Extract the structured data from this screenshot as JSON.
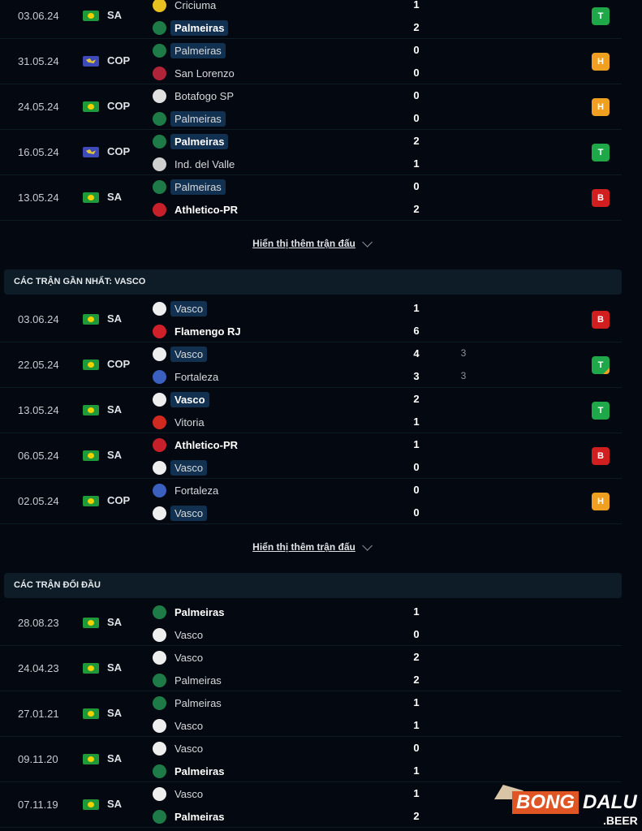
{
  "colors": {
    "win": "#1fa84a",
    "draw": "#f0a020",
    "loss": "#d11f1f",
    "header_bg": "#0d1c26",
    "highlight": "#12304f"
  },
  "show_more_label": "Hiển thị thêm trận đấu",
  "sections": [
    {
      "title": "",
      "matches": [
        {
          "date": "03.06.24",
          "flag": "brazil-flag",
          "comp": "SA",
          "home": {
            "name": "Criciuma",
            "icon": "criciuma-crest",
            "color": "#e8c020",
            "bold": false,
            "hl": false
          },
          "away": {
            "name": "Palmeiras",
            "icon": "palmeiras-crest",
            "color": "#1e7a46",
            "bold": true,
            "hl": true
          },
          "score": [
            "1",
            "2"
          ],
          "pen": [
            "",
            ""
          ],
          "result": "T"
        },
        {
          "date": "31.05.24",
          "flag": "conmebol-flag",
          "comp": "COP",
          "home": {
            "name": "Palmeiras",
            "icon": "palmeiras-crest",
            "color": "#1e7a46",
            "bold": false,
            "hl": true
          },
          "away": {
            "name": "San Lorenzo",
            "icon": "san-lorenzo-crest",
            "color": "#b0243a",
            "bold": false,
            "hl": false
          },
          "score": [
            "0",
            "0"
          ],
          "pen": [
            "",
            ""
          ],
          "result": "H"
        },
        {
          "date": "24.05.24",
          "flag": "brazil-flag",
          "comp": "COP",
          "home": {
            "name": "Botafogo SP",
            "icon": "botafogo-sp-crest",
            "color": "#e0e0e0",
            "bold": false,
            "hl": false
          },
          "away": {
            "name": "Palmeiras",
            "icon": "palmeiras-crest",
            "color": "#1e7a46",
            "bold": false,
            "hl": true
          },
          "score": [
            "0",
            "0"
          ],
          "pen": [
            "",
            ""
          ],
          "result": "H"
        },
        {
          "date": "16.05.24",
          "flag": "conmebol-flag",
          "comp": "COP",
          "home": {
            "name": "Palmeiras",
            "icon": "palmeiras-crest",
            "color": "#1e7a46",
            "bold": true,
            "hl": true
          },
          "away": {
            "name": "Ind. del Valle",
            "icon": "ind-del-valle-crest",
            "color": "#d0d0d0",
            "bold": false,
            "hl": false
          },
          "score": [
            "2",
            "1"
          ],
          "pen": [
            "",
            ""
          ],
          "result": "T"
        },
        {
          "date": "13.05.24",
          "flag": "brazil-flag",
          "comp": "SA",
          "home": {
            "name": "Palmeiras",
            "icon": "palmeiras-crest",
            "color": "#1e7a46",
            "bold": false,
            "hl": true
          },
          "away": {
            "name": "Athletico-PR",
            "icon": "athletico-pr-crest",
            "color": "#c8202a",
            "bold": true,
            "hl": false
          },
          "score": [
            "0",
            "2"
          ],
          "pen": [
            "",
            ""
          ],
          "result": "B"
        }
      ],
      "more": true
    },
    {
      "title": "CÁC TRẬN GẦN NHẤT: VASCO",
      "matches": [
        {
          "date": "03.06.24",
          "flag": "brazil-flag",
          "comp": "SA",
          "home": {
            "name": "Vasco",
            "icon": "vasco-crest",
            "color": "#eeeeee",
            "bold": false,
            "hl": true
          },
          "away": {
            "name": "Flamengo RJ",
            "icon": "flamengo-crest",
            "color": "#d0202a",
            "bold": true,
            "hl": false
          },
          "score": [
            "1",
            "6"
          ],
          "pen": [
            "",
            ""
          ],
          "result": "B"
        },
        {
          "date": "22.05.24",
          "flag": "brazil-flag",
          "comp": "COP",
          "home": {
            "name": "Vasco",
            "icon": "vasco-crest",
            "color": "#eeeeee",
            "bold": false,
            "hl": true
          },
          "away": {
            "name": "Fortaleza",
            "icon": "fortaleza-crest",
            "color": "#3a60c0",
            "bold": false,
            "hl": false
          },
          "score": [
            "4",
            "3"
          ],
          "pen": [
            "3",
            "3"
          ],
          "result": "T",
          "corner": true
        },
        {
          "date": "13.05.24",
          "flag": "brazil-flag",
          "comp": "SA",
          "home": {
            "name": "Vasco",
            "icon": "vasco-crest",
            "color": "#eeeeee",
            "bold": true,
            "hl": true
          },
          "away": {
            "name": "Vitoria",
            "icon": "vitoria-crest",
            "color": "#d02a20",
            "bold": false,
            "hl": false
          },
          "score": [
            "2",
            "1"
          ],
          "pen": [
            "",
            ""
          ],
          "result": "T"
        },
        {
          "date": "06.05.24",
          "flag": "brazil-flag",
          "comp": "SA",
          "home": {
            "name": "Athletico-PR",
            "icon": "athletico-pr-crest",
            "color": "#c8202a",
            "bold": true,
            "hl": false
          },
          "away": {
            "name": "Vasco",
            "icon": "vasco-crest",
            "color": "#eeeeee",
            "bold": false,
            "hl": true
          },
          "score": [
            "1",
            "0"
          ],
          "pen": [
            "",
            ""
          ],
          "result": "B"
        },
        {
          "date": "02.05.24",
          "flag": "brazil-flag",
          "comp": "COP",
          "home": {
            "name": "Fortaleza",
            "icon": "fortaleza-crest",
            "color": "#3a60c0",
            "bold": false,
            "hl": false
          },
          "away": {
            "name": "Vasco",
            "icon": "vasco-crest",
            "color": "#eeeeee",
            "bold": false,
            "hl": true
          },
          "score": [
            "0",
            "0"
          ],
          "pen": [
            "",
            ""
          ],
          "result": "H"
        }
      ],
      "more": true
    },
    {
      "title": "CÁC TRẬN ĐỐI ĐẦU",
      "matches": [
        {
          "date": "28.08.23",
          "flag": "brazil-flag",
          "comp": "SA",
          "home": {
            "name": "Palmeiras",
            "icon": "palmeiras-crest",
            "color": "#1e7a46",
            "bold": true,
            "hl": false
          },
          "away": {
            "name": "Vasco",
            "icon": "vasco-crest",
            "color": "#eeeeee",
            "bold": false,
            "hl": false
          },
          "score": [
            "1",
            "0"
          ],
          "pen": [
            "",
            ""
          ],
          "result": ""
        },
        {
          "date": "24.04.23",
          "flag": "brazil-flag",
          "comp": "SA",
          "home": {
            "name": "Vasco",
            "icon": "vasco-crest",
            "color": "#eeeeee",
            "bold": false,
            "hl": false
          },
          "away": {
            "name": "Palmeiras",
            "icon": "palmeiras-crest",
            "color": "#1e7a46",
            "bold": false,
            "hl": false
          },
          "score": [
            "2",
            "2"
          ],
          "pen": [
            "",
            ""
          ],
          "result": ""
        },
        {
          "date": "27.01.21",
          "flag": "brazil-flag",
          "comp": "SA",
          "home": {
            "name": "Palmeiras",
            "icon": "palmeiras-crest",
            "color": "#1e7a46",
            "bold": false,
            "hl": false
          },
          "away": {
            "name": "Vasco",
            "icon": "vasco-crest",
            "color": "#eeeeee",
            "bold": false,
            "hl": false
          },
          "score": [
            "1",
            "1"
          ],
          "pen": [
            "",
            ""
          ],
          "result": ""
        },
        {
          "date": "09.11.20",
          "flag": "brazil-flag",
          "comp": "SA",
          "home": {
            "name": "Vasco",
            "icon": "vasco-crest",
            "color": "#eeeeee",
            "bold": false,
            "hl": false
          },
          "away": {
            "name": "Palmeiras",
            "icon": "palmeiras-crest",
            "color": "#1e7a46",
            "bold": true,
            "hl": false
          },
          "score": [
            "0",
            "1"
          ],
          "pen": [
            "",
            ""
          ],
          "result": ""
        },
        {
          "date": "07.11.19",
          "flag": "brazil-flag",
          "comp": "SA",
          "home": {
            "name": "Vasco",
            "icon": "vasco-crest",
            "color": "#eeeeee",
            "bold": false,
            "hl": false
          },
          "away": {
            "name": "Palmeiras",
            "icon": "palmeiras-crest",
            "color": "#1e7a46",
            "bold": true,
            "hl": false
          },
          "score": [
            "1",
            "2"
          ],
          "pen": [
            "",
            ""
          ],
          "result": ""
        }
      ],
      "more": false
    }
  ],
  "watermark": {
    "text1": "BONG",
    "text2": "DALU",
    "text3": ".BEER"
  }
}
